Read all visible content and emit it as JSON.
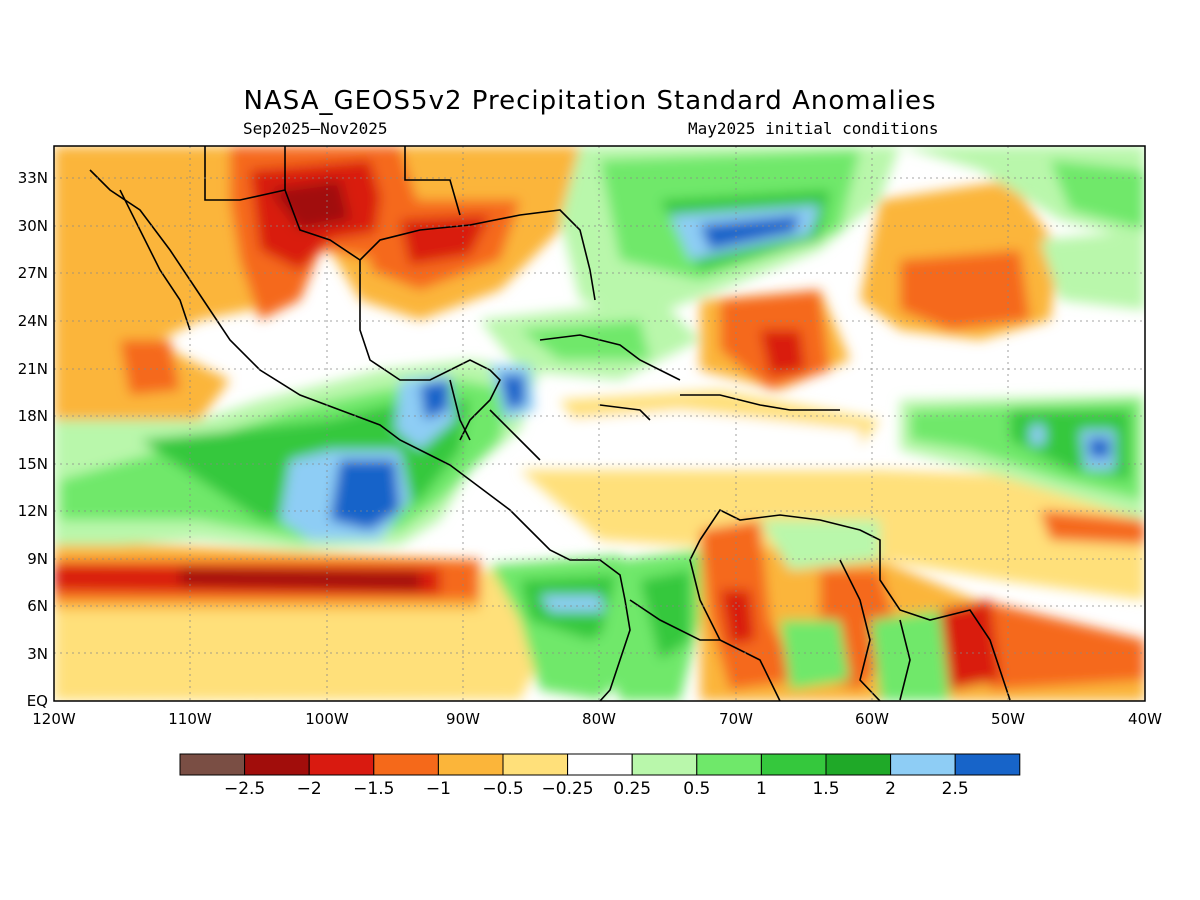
{
  "title": "NASA_GEOS5v2 Precipitation Standard Anomalies",
  "subtitle_left": "Sep2025–Nov2025",
  "subtitle_right": "May2025 initial conditions",
  "lat_ticks": [
    "EQ",
    "3N",
    "6N",
    "9N",
    "12N",
    "15N",
    "18N",
    "21N",
    "24N",
    "27N",
    "30N",
    "33N"
  ],
  "lon_ticks": [
    "120W",
    "110W",
    "100W",
    "90W",
    "80W",
    "70W",
    "60W",
    "50W",
    "40W"
  ],
  "colorbar": {
    "labels": [
      "−2.5",
      "−2",
      "−1.5",
      "−1",
      "−0.5",
      "−0.25",
      "0.25",
      "0.5",
      "1",
      "1.5",
      "2",
      "2.5"
    ],
    "colors": [
      "#7a4e44",
      "#a10d0b",
      "#d91a10",
      "#f5691a",
      "#fbb53a",
      "#ffe07a",
      "#ffffff",
      "#b9f7ab",
      "#6fe86a",
      "#35c83d",
      "#1fa928",
      "#8ecdf5",
      "#1764c9"
    ]
  },
  "map_data": {
    "extent": {
      "lon": [
        -120,
        -40
      ],
      "lat": [
        0,
        35
      ]
    },
    "anomaly_regions": [
      {
        "cat": -1.5,
        "lon": [
          -104,
          -92
        ],
        "lat": [
          27,
          34
        ],
        "color": "#d91a10"
      },
      {
        "cat": -0.5,
        "lon": [
          -120,
          -108
        ],
        "lat": [
          20,
          34
        ],
        "color": "#fbb53a"
      },
      {
        "cat": -1.5,
        "lon": [
          -120,
          -85
        ],
        "lat": [
          6,
          9
        ],
        "color": "#d91a10"
      },
      {
        "cat": -2.0,
        "lon": [
          -108,
          -95
        ],
        "lat": [
          6.5,
          8
        ],
        "color": "#a10d0b"
      },
      {
        "cat": 0.5,
        "lon": [
          -110,
          -88
        ],
        "lat": [
          11,
          18
        ],
        "color": "#6fe86a"
      },
      {
        "cat": 2.5,
        "lon": [
          -101,
          -93
        ],
        "lat": [
          11,
          16
        ],
        "color": "#1764c9"
      },
      {
        "cat": 2.0,
        "lon": [
          -77,
          -68
        ],
        "lat": [
          26,
          30
        ],
        "color": "#8ecdf5"
      },
      {
        "cat": -1.0,
        "lon": [
          -70,
          -60
        ],
        "lat": [
          19,
          25
        ],
        "color": "#f5691a"
      },
      {
        "cat": -1.0,
        "lon": [
          -55,
          -45
        ],
        "lat": [
          22,
          31
        ],
        "color": "#f5691a"
      },
      {
        "cat": 1.5,
        "lon": [
          -58,
          -40
        ],
        "lat": [
          14,
          19
        ],
        "color": "#35c83d"
      },
      {
        "cat": -1.0,
        "lon": [
          -75,
          -60
        ],
        "lat": [
          1,
          11
        ],
        "color": "#f5691a"
      },
      {
        "cat": 1.0,
        "lon": [
          -85,
          -75
        ],
        "lat": [
          3,
          8
        ],
        "color": "#6fe86a"
      }
    ]
  }
}
